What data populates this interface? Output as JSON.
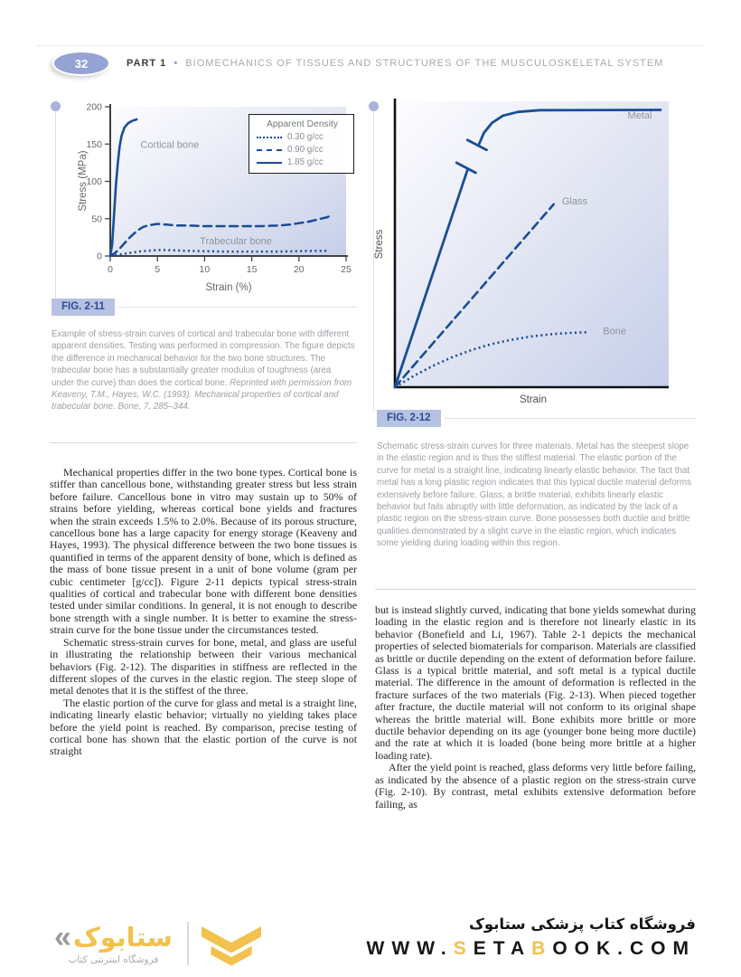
{
  "header": {
    "page_number": "32",
    "part_label": "PART 1",
    "separator": "•",
    "title": "BIOMECHANICS OF TISSUES AND STRUCTURES OF THE MUSCULOSKELETAL SYSTEM"
  },
  "fig211": {
    "badge": "FIG. 2-11",
    "caption": "Example of stress-strain curves of cortical and trabecular bone with different apparent densities. Testing was performed in compression. The figure depicts the difference in mechanical behavior for the two bone structures. The trabecular bone has a substantially greater modulus of toughness (area under the curve) than does the cortical bone. ",
    "citation": "Reprinted with permission from Keaveny, T.M., Hayes, W.C. (1993). Mechanical properties of cortical and trabecular bone. Bone, 7, 285–344."
  },
  "fig212": {
    "badge": "FIG. 2-12",
    "caption": "Schematic stress-strain curves for three materials. Metal has the steepest slope in the elastic region and is thus the stiffest material. The elastic portion of the curve for metal is a straight line, indicating linearly elastic behavior. The fact that metal has a long plastic region indicates that this typical ductile material deforms extensively before failure. Glass, a brittle material, exhibits linearly elastic behavior but fails abruptly with little deformation, as indicated by the lack of a plastic region on the stress-strain curve. Bone possesses both ductile and brittle qualities demonstrated by a slight curve in the elastic region, which indicates some yielding during loading within this region."
  },
  "body": {
    "left": {
      "p1": "Mechanical properties differ in the two bone types. Cortical bone is stiffer than cancellous bone, withstanding greater stress but less strain before failure. Cancellous bone in vitro may sustain up to 50% of strains before yielding, whereas cortical bone yields and fractures when the strain exceeds 1.5% to 2.0%. Because of its porous structure, cancellous bone has a large capacity for energy storage (Keaveny and Hayes, 1993). The physical difference between the two bone tissues is quantified in terms of the apparent density of bone, which is defined as the mass of bone tissue present in a unit of bone volume (gram per cubic centimeter [g/cc]). Figure 2-11 depicts typical stress-strain qualities of cortical and trabecular bone with different bone densities tested under similar conditions. In general, it is not enough to describe bone strength with a single number. It is better to examine the stress-strain curve for the bone tissue under the circumstances tested.",
      "p2": "Schematic stress-strain curves for bone, metal, and glass are useful in illustrating the relationship between their various mechanical behaviors (Fig. 2-12). The disparities in stiffness are reflected in the different slopes of the curves in the elastic region. The steep slope of metal denotes that it is the stiffest of the three.",
      "p3": "The elastic portion of the curve for glass and metal is a straight line, indicating linearly elastic behavior; virtually no yielding takes place before the yield point is reached. By comparison, precise testing of cortical bone has shown that the elastic portion of the curve is not straight"
    },
    "right": {
      "p1": "but is instead slightly curved, indicating that bone yields somewhat during loading in the elastic region and is therefore not linearly elastic in its behavior (Bonefield and Li, 1967). Table 2-1 depicts the mechanical properties of selected biomaterials for comparison. Materials are classified as brittle or ductile depending on the extent of deformation before failure. Glass is a typical brittle material, and soft metal is a typical ductile material. The difference in the amount of deformation is reflected in the fracture surfaces of the two materials (Fig. 2-13). When pieced together after fracture, the ductile material will not conform to its original shape whereas the brittle material will. Bone exhibits more brittle or more ductile behavior depending on its age (younger bone being more ductile) and the rate at which it is loaded (bone being more brittle at a higher loading rate).",
      "p2": "After the yield point is reached, glass deforms very little before failing, as indicated by the absence of a plastic region on the stress-strain curve (Fig. 2-10). By contrast, metal exhibits extensive deformation before failing, as"
    }
  },
  "footer": {
    "logo_mark": "«",
    "logo_text": "ستابوک",
    "logo_tagline": "فروشگاه اینترنتی کتاب",
    "store_title": "فروشگاه کتاب پزشکی ستابوک",
    "url_parts": [
      "WWW.",
      "S",
      "ETA",
      "B",
      "OOK.COM"
    ]
  },
  "colors": {
    "accent_lavender": "#93a3d3",
    "badge_bg": "#b7c2e2",
    "badge_text": "#2a4c94",
    "curve_blue": "#1a4d96",
    "caption_gray": "#9ba0a6",
    "brand_yellow": "#f2c14e",
    "plot_gradient_end": "#c6cee9"
  },
  "chart_data": [
    {
      "id": "fig211",
      "type": "line",
      "title": "Stress-strain curves of cortical and trabecular bone",
      "xlabel": "Strain (%)",
      "ylabel": "Stress (MPa)",
      "xlim": [
        0,
        25
      ],
      "ylim": [
        0,
        200
      ],
      "x_ticks": [
        0,
        5,
        10,
        15,
        20,
        25
      ],
      "y_ticks": [
        0,
        50,
        100,
        150,
        200
      ],
      "grid": false,
      "legend_position": "top-right",
      "line_color": "#1a4d96",
      "legend": {
        "title": "Apparent Density",
        "items": [
          {
            "label": "0.30 g/cc",
            "style": "dotted"
          },
          {
            "label": "0.90 g/cc",
            "style": "dashed"
          },
          {
            "label": "1.85 g/cc",
            "style": "solid"
          }
        ]
      },
      "series": [
        {
          "name": "1.85 g/cc (cortical bone)",
          "style": "solid",
          "width": 2.6,
          "points": [
            [
              0,
              0
            ],
            [
              0.2,
              15
            ],
            [
              0.4,
              55
            ],
            [
              0.6,
              95
            ],
            [
              0.8,
              125
            ],
            [
              1.0,
              147
            ],
            [
              1.2,
              161
            ],
            [
              1.5,
              172
            ],
            [
              1.9,
              178
            ],
            [
              2.3,
              181
            ],
            [
              2.8,
              183
            ]
          ]
        },
        {
          "name": "0.90 g/cc (trabecular bone)",
          "style": "dashed",
          "width": 2.5,
          "points": [
            [
              0,
              0
            ],
            [
              0.5,
              4
            ],
            [
              1,
              10
            ],
            [
              1.5,
              17
            ],
            [
              2,
              24
            ],
            [
              2.5,
              30
            ],
            [
              3,
              35
            ],
            [
              3.5,
              39
            ],
            [
              4,
              41
            ],
            [
              5,
              43
            ],
            [
              6,
              42
            ],
            [
              7,
              41
            ],
            [
              8,
              41
            ],
            [
              10,
              40
            ],
            [
              12,
              40
            ],
            [
              14,
              40
            ],
            [
              16,
              40
            ],
            [
              18,
              41
            ],
            [
              19,
              42
            ],
            [
              20,
              44
            ],
            [
              21,
              46
            ],
            [
              22,
              49
            ],
            [
              23,
              52
            ],
            [
              23.5,
              55
            ]
          ]
        },
        {
          "name": "0.30 g/cc (trabecular bone)",
          "style": "dotted",
          "width": 2.5,
          "points": [
            [
              0,
              0
            ],
            [
              1,
              2
            ],
            [
              2,
              4
            ],
            [
              3,
              6
            ],
            [
              4,
              7
            ],
            [
              5,
              8
            ],
            [
              6,
              8
            ],
            [
              7,
              7.5
            ],
            [
              8,
              7
            ],
            [
              10,
              6.5
            ],
            [
              12,
              6
            ],
            [
              14,
              6
            ],
            [
              16,
              6
            ],
            [
              18,
              6
            ],
            [
              20,
              6.5
            ],
            [
              22,
              7
            ],
            [
              23.2,
              7
            ]
          ]
        }
      ],
      "annotations": [
        {
          "text": "Cortical bone",
          "x": 3.2,
          "y": 145,
          "anchor": "start"
        },
        {
          "text": "Trabecular bone",
          "x": 9.5,
          "y": 16,
          "anchor": "start"
        }
      ]
    },
    {
      "id": "fig212",
      "type": "line",
      "title": "Schematic stress-strain curves for metal, glass, and bone",
      "xlabel": "Strain",
      "ylabel": "Stress",
      "xlim": [
        0,
        100
      ],
      "ylim": [
        0,
        100
      ],
      "x_ticks": [],
      "y_ticks": [],
      "grid": false,
      "line_color": "#1a4d96",
      "series": [
        {
          "name": "Metal elastic region (with axis break)",
          "style": "solid",
          "width": 2.8,
          "points": [
            [
              0,
              0
            ],
            [
              26.5,
              76
            ]
          ]
        },
        {
          "name": "break tick lower",
          "style": "solid",
          "width": 2.8,
          "points": [
            [
              22.5,
              78.5
            ],
            [
              29.5,
              75
            ]
          ]
        },
        {
          "name": "break tick upper",
          "style": "solid",
          "width": 2.8,
          "points": [
            [
              26.5,
              86.5
            ],
            [
              33.5,
              83
            ]
          ]
        },
        {
          "name": "Metal plastic region",
          "style": "solid",
          "width": 2.8,
          "points": [
            [
              30.5,
              84.5
            ],
            [
              32.5,
              89
            ],
            [
              35.5,
              92.5
            ],
            [
              39.5,
              95
            ],
            [
              45,
              96.3
            ],
            [
              53,
              96.9
            ],
            [
              97,
              97
            ]
          ]
        },
        {
          "name": "Glass",
          "style": "dashed",
          "width": 2.6,
          "points": [
            [
              0,
              0
            ],
            [
              58,
              64
            ]
          ]
        },
        {
          "name": "Bone",
          "style": "dotted",
          "width": 2.6,
          "points": [
            [
              0,
              0
            ],
            [
              7,
              4
            ],
            [
              14,
              7.5
            ],
            [
              21,
              10.5
            ],
            [
              28,
              13
            ],
            [
              35,
              15
            ],
            [
              42,
              16.5
            ],
            [
              50,
              17.8
            ],
            [
              58,
              18.6
            ],
            [
              64,
              19
            ],
            [
              70,
              19.2
            ]
          ]
        }
      ],
      "annotations": [
        {
          "text": "Metal",
          "x": 85,
          "y": 94,
          "anchor": "start"
        },
        {
          "text": "Glass",
          "x": 61,
          "y": 64,
          "anchor": "start"
        },
        {
          "text": "Bone",
          "x": 76,
          "y": 18.5,
          "anchor": "start"
        }
      ]
    }
  ]
}
